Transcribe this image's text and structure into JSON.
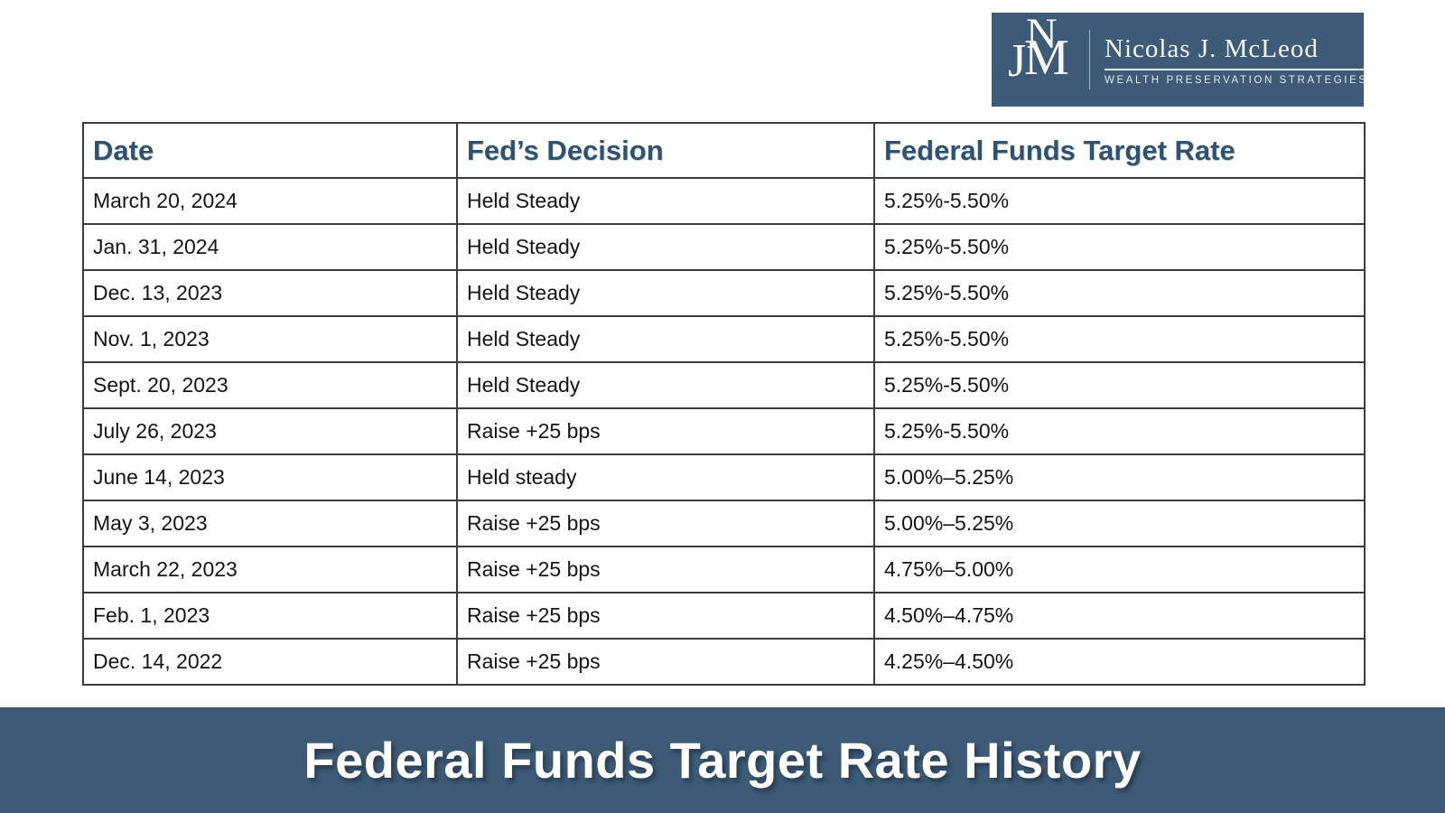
{
  "brand": {
    "monogram": {
      "n": "N",
      "j": "J",
      "m": "M"
    },
    "name": "Nicolas J. McLeod",
    "tagline": "WEALTH PRESERVATION STRATEGIES"
  },
  "table": {
    "columns": [
      "Date",
      "Fed’s Decision",
      "Federal Funds Target Rate"
    ],
    "rows": [
      [
        "March 20, 2024",
        "Held Steady",
        "5.25%-5.50%"
      ],
      [
        "Jan. 31, 2024",
        "Held Steady",
        "5.25%-5.50%"
      ],
      [
        "Dec. 13, 2023",
        "Held Steady",
        "5.25%-5.50%"
      ],
      [
        "Nov. 1, 2023",
        "Held Steady",
        "5.25%-5.50%"
      ],
      [
        "Sept. 20, 2023",
        "Held Steady",
        "5.25%-5.50%"
      ],
      [
        "July 26, 2023",
        "Raise +25 bps",
        "5.25%-5.50%"
      ],
      [
        "June 14, 2023",
        "Held steady",
        "5.00%–5.25%"
      ],
      [
        "May 3, 2023",
        "Raise +25 bps",
        "5.00%–5.25%"
      ],
      [
        "March 22, 2023",
        "Raise +25 bps",
        "4.75%–5.00%"
      ],
      [
        "Feb. 1, 2023",
        "Raise +25 bps",
        "4.50%–4.75%"
      ],
      [
        "Dec. 14, 2022",
        "Raise +25 bps",
        "4.25%–4.50%"
      ]
    ]
  },
  "footer": {
    "title": "Federal Funds Target Rate History"
  },
  "colors": {
    "brand_blue": "#3d5a76",
    "header_text": "#2f5270",
    "border": "#3c3c3c",
    "body_text": "#141414",
    "banner_text": "#ffffff"
  },
  "chart_data": {
    "type": "table",
    "title": "Federal Funds Target Rate History",
    "columns": [
      "Date",
      "Fed’s Decision",
      "Federal Funds Target Rate"
    ],
    "rows": [
      [
        "March 20, 2024",
        "Held Steady",
        "5.25%-5.50%"
      ],
      [
        "Jan. 31, 2024",
        "Held Steady",
        "5.25%-5.50%"
      ],
      [
        "Dec. 13, 2023",
        "Held Steady",
        "5.25%-5.50%"
      ],
      [
        "Nov. 1, 2023",
        "Held Steady",
        "5.25%-5.50%"
      ],
      [
        "Sept. 20, 2023",
        "Held Steady",
        "5.25%-5.50%"
      ],
      [
        "July 26, 2023",
        "Raise +25 bps",
        "5.25%-5.50%"
      ],
      [
        "June 14, 2023",
        "Held steady",
        "5.00%–5.25%"
      ],
      [
        "May 3, 2023",
        "Raise +25 bps",
        "5.00%–5.25%"
      ],
      [
        "March 22, 2023",
        "Raise +25 bps",
        "4.75%–5.00%"
      ],
      [
        "Feb. 1, 2023",
        "Raise +25 bps",
        "4.50%–4.75%"
      ],
      [
        "Dec. 14, 2022",
        "Raise +25 bps",
        "4.25%–4.50%"
      ]
    ]
  }
}
